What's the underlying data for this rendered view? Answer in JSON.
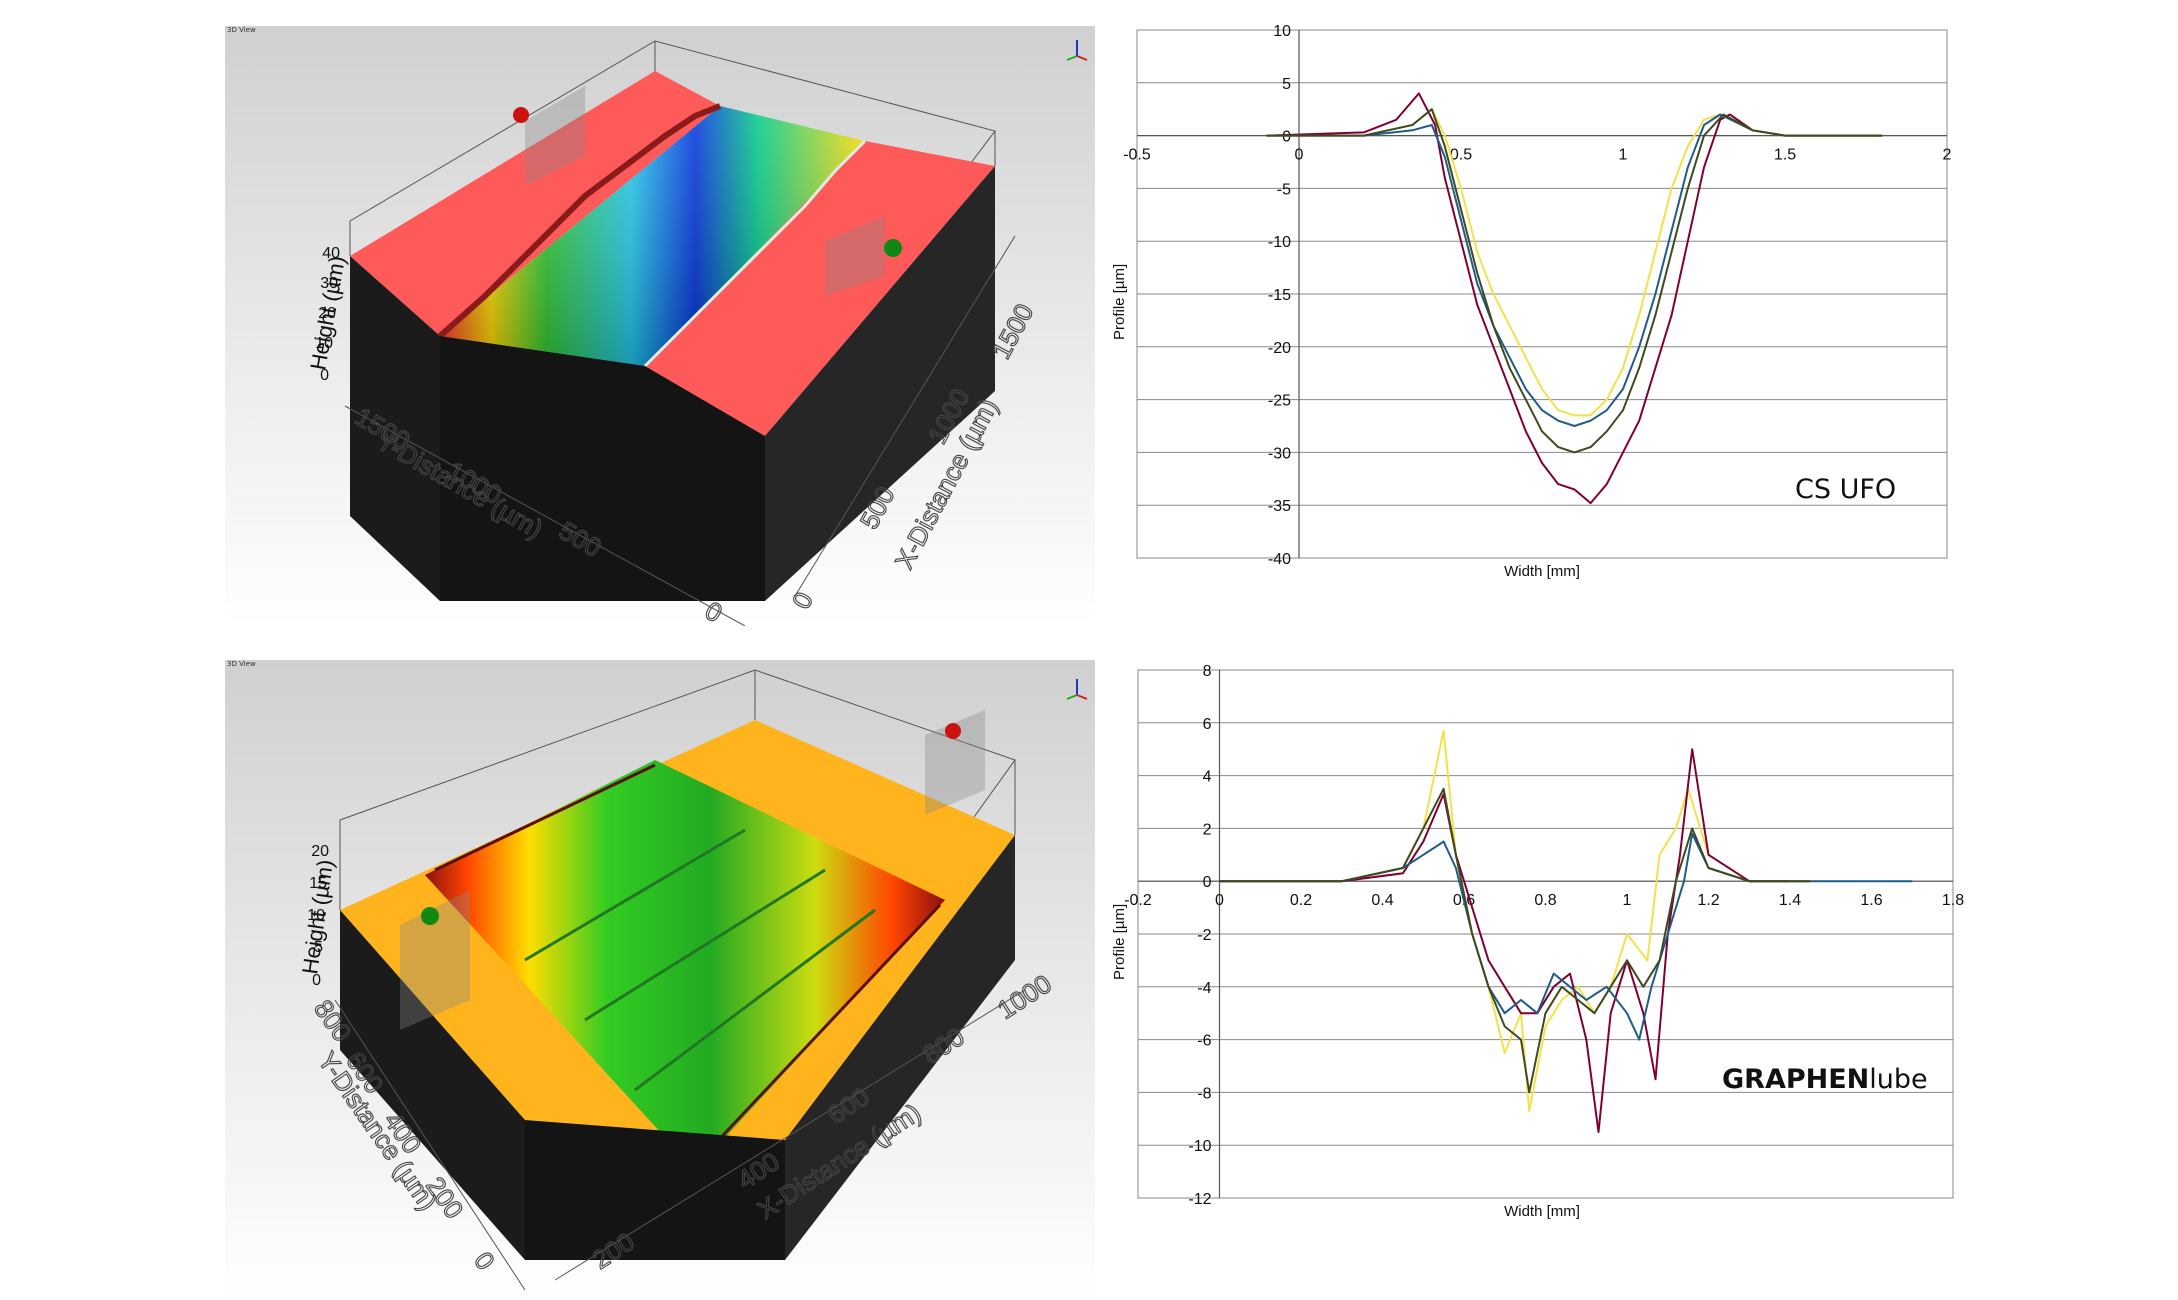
{
  "views": [
    {
      "caption": "3D View",
      "z_axis_label": "Height (µm)",
      "z_ticks": [
        "0",
        "10",
        "20",
        "30",
        "40"
      ],
      "y_axis_label": "Y-Distance (µm)",
      "y_ticks": [
        "0",
        "500",
        "1000",
        "1500"
      ],
      "x_axis_label": "X-Distance (µm)",
      "x_ticks": [
        "0",
        "500",
        "1000",
        "1500"
      ],
      "surface_color": "#ff5a5a",
      "colormap": "rainbow"
    },
    {
      "caption": "3D View",
      "z_axis_label": "Height (µm)",
      "z_ticks": [
        "0",
        "5",
        "10",
        "15",
        "20"
      ],
      "y_axis_label": "Y-Distance (µm)",
      "y_ticks": [
        "0",
        "200",
        "400",
        "600",
        "800"
      ],
      "x_axis_label": "X-Distance (µm)",
      "x_ticks": [
        "200",
        "400",
        "600",
        "800",
        "1000"
      ],
      "surface_color": "#ffb41e",
      "colormap": "rainbow"
    }
  ],
  "chart_data": [
    {
      "type": "line",
      "brand": "CS UFO",
      "xlabel": "Width   [mm]",
      "ylabel": "Profile [µm]",
      "xlim": [
        -0.5,
        2
      ],
      "ylim": [
        -40,
        10
      ],
      "xticks": [
        -0.5,
        0,
        0.5,
        1,
        1.5,
        2
      ],
      "yticks": [
        10,
        5,
        0,
        -5,
        -10,
        -15,
        -20,
        -25,
        -30,
        -35,
        -40
      ],
      "grid": "horizontal",
      "series_colors": [
        "#800033",
        "#f2e24a",
        "#1f5c8a",
        "#3f4a1e"
      ],
      "series": [
        {
          "color": "#800033",
          "points": [
            [
              -0.1,
              0
            ],
            [
              0.2,
              0.3
            ],
            [
              0.3,
              1.5
            ],
            [
              0.37,
              4
            ],
            [
              0.42,
              1
            ],
            [
              0.45,
              -4
            ],
            [
              0.5,
              -10
            ],
            [
              0.55,
              -16
            ],
            [
              0.6,
              -20
            ],
            [
              0.65,
              -24
            ],
            [
              0.7,
              -28
            ],
            [
              0.75,
              -31
            ],
            [
              0.8,
              -33
            ],
            [
              0.85,
              -33.5
            ],
            [
              0.9,
              -34.8
            ],
            [
              0.95,
              -33
            ],
            [
              1.0,
              -30
            ],
            [
              1.05,
              -27
            ],
            [
              1.1,
              -22
            ],
            [
              1.15,
              -17
            ],
            [
              1.2,
              -10
            ],
            [
              1.25,
              -3
            ],
            [
              1.3,
              1.5
            ],
            [
              1.33,
              2
            ],
            [
              1.4,
              0.5
            ],
            [
              1.5,
              0
            ],
            [
              1.8,
              0
            ]
          ]
        },
        {
          "color": "#f2e24a",
          "points": [
            [
              -0.1,
              0
            ],
            [
              0.2,
              0
            ],
            [
              0.35,
              1
            ],
            [
              0.41,
              2.5
            ],
            [
              0.45,
              0
            ],
            [
              0.5,
              -5
            ],
            [
              0.55,
              -11
            ],
            [
              0.6,
              -15
            ],
            [
              0.65,
              -18
            ],
            [
              0.7,
              -21
            ],
            [
              0.75,
              -24
            ],
            [
              0.8,
              -26
            ],
            [
              0.85,
              -26.5
            ],
            [
              0.9,
              -26.5
            ],
            [
              0.95,
              -25
            ],
            [
              1.0,
              -22
            ],
            [
              1.05,
              -17
            ],
            [
              1.1,
              -11
            ],
            [
              1.15,
              -5
            ],
            [
              1.2,
              -1
            ],
            [
              1.25,
              1.5
            ],
            [
              1.3,
              2
            ],
            [
              1.4,
              0.5
            ],
            [
              1.5,
              0
            ],
            [
              1.8,
              0
            ]
          ]
        },
        {
          "color": "#1f5c8a",
          "points": [
            [
              -0.1,
              0
            ],
            [
              0.2,
              0
            ],
            [
              0.35,
              0.5
            ],
            [
              0.41,
              1
            ],
            [
              0.45,
              -2
            ],
            [
              0.5,
              -8
            ],
            [
              0.55,
              -14
            ],
            [
              0.6,
              -18
            ],
            [
              0.65,
              -21
            ],
            [
              0.7,
              -24
            ],
            [
              0.75,
              -26
            ],
            [
              0.8,
              -27
            ],
            [
              0.85,
              -27.5
            ],
            [
              0.9,
              -27
            ],
            [
              0.95,
              -26
            ],
            [
              1.0,
              -24
            ],
            [
              1.05,
              -20
            ],
            [
              1.1,
              -15
            ],
            [
              1.15,
              -9
            ],
            [
              1.2,
              -3
            ],
            [
              1.25,
              1
            ],
            [
              1.3,
              2
            ],
            [
              1.4,
              0.5
            ],
            [
              1.5,
              0
            ],
            [
              1.8,
              0
            ]
          ]
        },
        {
          "color": "#3f4a1e",
          "points": [
            [
              -0.1,
              0
            ],
            [
              0.2,
              0
            ],
            [
              0.35,
              1
            ],
            [
              0.41,
              2.5
            ],
            [
              0.45,
              -1
            ],
            [
              0.5,
              -7
            ],
            [
              0.55,
              -13
            ],
            [
              0.6,
              -18
            ],
            [
              0.65,
              -22
            ],
            [
              0.7,
              -25
            ],
            [
              0.75,
              -28
            ],
            [
              0.8,
              -29.5
            ],
            [
              0.85,
              -30
            ],
            [
              0.9,
              -29.5
            ],
            [
              0.95,
              -28
            ],
            [
              1.0,
              -26
            ],
            [
              1.05,
              -22
            ],
            [
              1.1,
              -17
            ],
            [
              1.15,
              -11
            ],
            [
              1.2,
              -5
            ],
            [
              1.25,
              0
            ],
            [
              1.31,
              2
            ],
            [
              1.4,
              0.5
            ],
            [
              1.5,
              0
            ],
            [
              1.8,
              0
            ]
          ]
        }
      ]
    },
    {
      "type": "line",
      "brand_bold": "GRAPHEN",
      "brand_light": "lube",
      "xlabel": "Width [mm]",
      "ylabel": "Profile [µm]",
      "xlim": [
        -0.2,
        1.8
      ],
      "ylim": [
        -12,
        8
      ],
      "xticks": [
        -0.2,
        0,
        0.2,
        0.4,
        0.6,
        0.8,
        1,
        1.2,
        1.4,
        1.6,
        1.8
      ],
      "yticks": [
        8,
        6,
        4,
        2,
        0,
        -2,
        -4,
        -6,
        -8,
        -10,
        -12
      ],
      "grid": "horizontal",
      "series_colors": [
        "#f2e24a",
        "#800033",
        "#1f5c8a",
        "#3f4a1e"
      ],
      "series": [
        {
          "color": "#f2e24a",
          "points": [
            [
              0,
              0
            ],
            [
              0.3,
              0
            ],
            [
              0.45,
              0.5
            ],
            [
              0.5,
              2
            ],
            [
              0.55,
              5.7
            ],
            [
              0.58,
              1
            ],
            [
              0.62,
              -2
            ],
            [
              0.66,
              -4
            ],
            [
              0.7,
              -6.5
            ],
            [
              0.74,
              -5
            ],
            [
              0.76,
              -8.7
            ],
            [
              0.8,
              -5.5
            ],
            [
              0.84,
              -4.5
            ],
            [
              0.88,
              -4
            ],
            [
              0.92,
              -5
            ],
            [
              0.96,
              -4
            ],
            [
              1.0,
              -2
            ],
            [
              1.05,
              -3
            ],
            [
              1.08,
              1
            ],
            [
              1.12,
              2
            ],
            [
              1.15,
              3.5
            ],
            [
              1.2,
              1
            ],
            [
              1.3,
              0
            ],
            [
              1.45,
              0
            ]
          ]
        },
        {
          "color": "#800033",
          "points": [
            [
              0,
              0
            ],
            [
              0.3,
              0
            ],
            [
              0.45,
              0.3
            ],
            [
              0.5,
              1.5
            ],
            [
              0.55,
              3.3
            ],
            [
              0.58,
              1
            ],
            [
              0.62,
              -1
            ],
            [
              0.66,
              -3
            ],
            [
              0.7,
              -4
            ],
            [
              0.74,
              -5
            ],
            [
              0.78,
              -5
            ],
            [
              0.82,
              -4
            ],
            [
              0.86,
              -3.5
            ],
            [
              0.9,
              -6
            ],
            [
              0.93,
              -9.5
            ],
            [
              0.96,
              -5
            ],
            [
              1.0,
              -3
            ],
            [
              1.04,
              -5
            ],
            [
              1.07,
              -7.5
            ],
            [
              1.1,
              -2
            ],
            [
              1.13,
              1
            ],
            [
              1.16,
              5
            ],
            [
              1.2,
              1
            ],
            [
              1.3,
              0
            ],
            [
              1.4,
              0
            ]
          ]
        },
        {
          "color": "#1f5c8a",
          "points": [
            [
              0,
              0
            ],
            [
              0.3,
              0
            ],
            [
              0.45,
              0.5
            ],
            [
              0.5,
              1
            ],
            [
              0.55,
              1.5
            ],
            [
              0.58,
              0.5
            ],
            [
              0.62,
              -2
            ],
            [
              0.66,
              -4
            ],
            [
              0.7,
              -5
            ],
            [
              0.74,
              -4.5
            ],
            [
              0.78,
              -5
            ],
            [
              0.82,
              -3.5
            ],
            [
              0.86,
              -4
            ],
            [
              0.9,
              -4.5
            ],
            [
              0.95,
              -4
            ],
            [
              1.0,
              -5
            ],
            [
              1.03,
              -6
            ],
            [
              1.06,
              -4
            ],
            [
              1.1,
              -2
            ],
            [
              1.14,
              0
            ],
            [
              1.16,
              1.8
            ],
            [
              1.2,
              0.5
            ],
            [
              1.3,
              0
            ],
            [
              1.7,
              0
            ]
          ]
        },
        {
          "color": "#3f4a1e",
          "points": [
            [
              0,
              0
            ],
            [
              0.3,
              0
            ],
            [
              0.45,
              0.5
            ],
            [
              0.5,
              2
            ],
            [
              0.55,
              3.5
            ],
            [
              0.58,
              1
            ],
            [
              0.62,
              -2
            ],
            [
              0.66,
              -4
            ],
            [
              0.7,
              -5.5
            ],
            [
              0.74,
              -6
            ],
            [
              0.76,
              -8
            ],
            [
              0.8,
              -5
            ],
            [
              0.84,
              -4
            ],
            [
              0.88,
              -4.5
            ],
            [
              0.92,
              -5
            ],
            [
              0.96,
              -4
            ],
            [
              1.0,
              -3
            ],
            [
              1.04,
              -4
            ],
            [
              1.08,
              -3
            ],
            [
              1.12,
              0
            ],
            [
              1.16,
              2
            ],
            [
              1.2,
              0.5
            ],
            [
              1.3,
              0
            ],
            [
              1.45,
              0
            ]
          ]
        }
      ]
    }
  ]
}
